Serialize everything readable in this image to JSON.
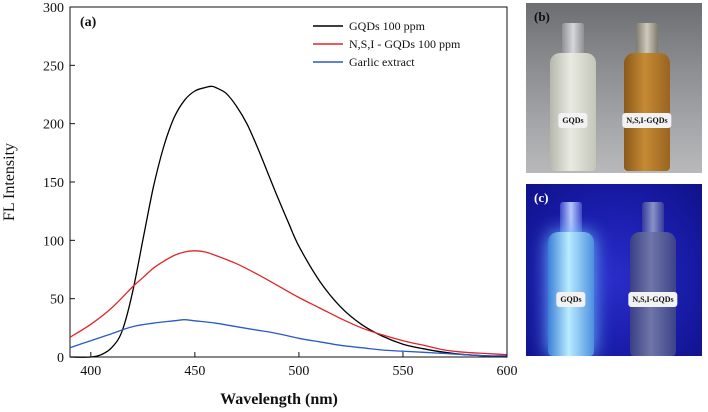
{
  "chart_data": {
    "type": "line",
    "panel_label": "(a)",
    "xlabel": "Wavelength (nm)",
    "ylabel": "FL Intensity",
    "xlim": [
      390,
      600
    ],
    "ylim": [
      0,
      300
    ],
    "xticks": [
      400,
      450,
      500,
      550,
      600
    ],
    "yticks": [
      0,
      50,
      100,
      150,
      200,
      250,
      300
    ],
    "legend_position": "top-right",
    "series": [
      {
        "name": "GQDs  100  ppm",
        "color": "#000000",
        "x": [
          390,
          400,
          405,
          410,
          415,
          420,
          425,
          430,
          435,
          440,
          445,
          450,
          455,
          458,
          460,
          465,
          470,
          475,
          480,
          485,
          490,
          495,
          500,
          510,
          520,
          530,
          540,
          550,
          560,
          570,
          580,
          590,
          600
        ],
        "y": [
          0,
          0,
          2,
          8,
          22,
          55,
          100,
          145,
          180,
          205,
          220,
          228,
          231,
          232,
          231,
          226,
          215,
          200,
          180,
          158,
          136,
          115,
          95,
          65,
          43,
          28,
          18,
          11,
          7,
          4,
          2,
          1,
          0
        ]
      },
      {
        "name": "N,S,I - GQDs  100  ppm",
        "color": "#e0262b",
        "x": [
          390,
          400,
          410,
          420,
          425,
          430,
          435,
          440,
          445,
          450,
          455,
          460,
          470,
          480,
          490,
          500,
          510,
          520,
          530,
          540,
          550,
          560,
          570,
          580,
          590,
          600
        ],
        "y": [
          17,
          28,
          42,
          60,
          68,
          76,
          82,
          87,
          90,
          91,
          90,
          87,
          80,
          71,
          61,
          51,
          42,
          33,
          25,
          19,
          14,
          10,
          6,
          4,
          3,
          2
        ]
      },
      {
        "name": "Garlic extract",
        "color": "#2a59c9",
        "x": [
          390,
          400,
          410,
          420,
          430,
          440,
          445,
          450,
          460,
          470,
          480,
          490,
          500,
          510,
          520,
          530,
          540,
          550,
          560,
          570,
          580,
          590,
          600
        ],
        "y": [
          8,
          14,
          20,
          26,
          29,
          31,
          32,
          31,
          29,
          26,
          23,
          20,
          16,
          13,
          10,
          8,
          6,
          5,
          4,
          3,
          2,
          1,
          1
        ]
      }
    ]
  },
  "photos": {
    "b": {
      "panel_label": "(b)",
      "vial_1_label": "GQDs",
      "vial_2_label": "N,S,I-GQDs"
    },
    "c": {
      "panel_label": "(c)",
      "vial_1_label": "GQDs",
      "vial_2_label": "N,S,I-GQDs"
    }
  }
}
